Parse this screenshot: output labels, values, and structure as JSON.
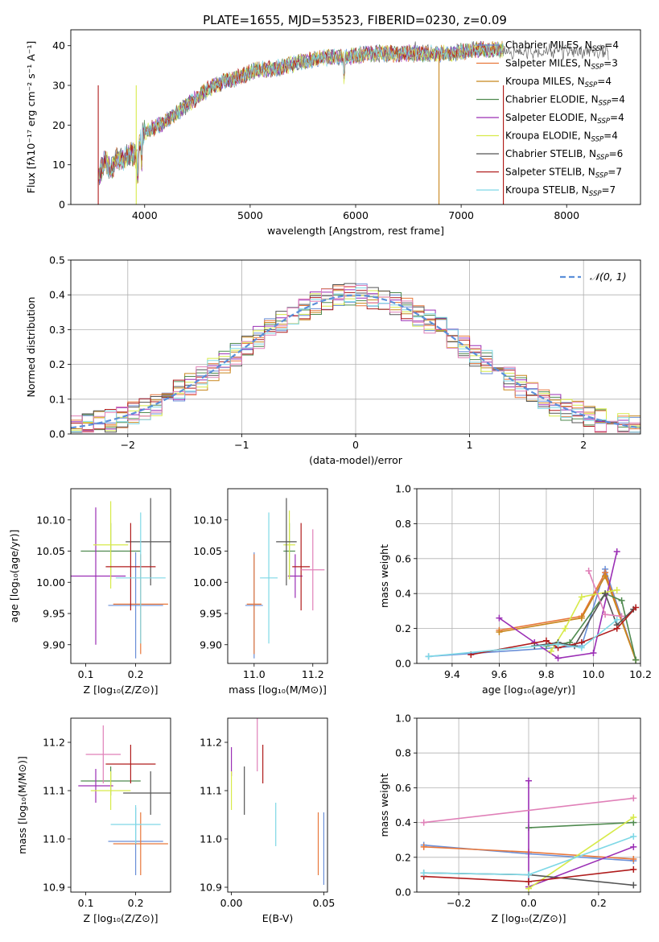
{
  "title": "PLATE=1655, MJD=53523, FIBERID=0230, z=0.09",
  "colors": {
    "chabrier_miles": "#6a8fd8",
    "salpeter_miles": "#e8773a",
    "kroupa_miles": "#c8861c",
    "chabrier_elodie": "#4f8a4f",
    "salpeter_elodie": "#9b2fb5",
    "kroupa_elodie": "#d7ea4a",
    "chabrier_stelib": "#555555",
    "salpeter_stelib": "#b01c1c",
    "kroupa_stelib": "#7fd8e6",
    "pink": "#e080b8",
    "normal": "#5b8fd9"
  },
  "chart_data": [
    {
      "type": "line",
      "title": "PLATE=1655, MJD=53523, FIBERID=0230, z=0.09",
      "xlabel": "wavelength [Angstrom, rest frame]",
      "ylabel": "Flux [fλ10⁻¹⁷ erg cm⁻² s⁻¹ A⁻¹]",
      "xlim": [
        3300,
        8700
      ],
      "ylim": [
        0,
        44
      ],
      "xticks": [
        "4000",
        "5000",
        "6000",
        "7000",
        "8000"
      ],
      "yticks": [
        "0",
        "10",
        "20",
        "30",
        "40"
      ],
      "grid": false,
      "legend_position": "right",
      "spectrum": {
        "x": [
          3560,
          3620,
          3680,
          3740,
          3800,
          3860,
          3920,
          3980,
          4050,
          4150,
          4250,
          4350,
          4450,
          4600,
          4750,
          4900,
          5050,
          5200,
          5350,
          5500,
          5700,
          5900,
          6100,
          6300,
          6500,
          6700,
          6900,
          7100,
          7300,
          7400
        ],
        "y": [
          7,
          11,
          9,
          12,
          11,
          13,
          12,
          18,
          19,
          20,
          22,
          24,
          26,
          29,
          31,
          32,
          34,
          34,
          35,
          36,
          37,
          37,
          38,
          38,
          38,
          38,
          38,
          39,
          39,
          39
        ]
      },
      "series": [
        {
          "name": "Chabrier MILES, N$_{SSP}$=4",
          "label_main": "Chabrier MILES, N",
          "label_sub": "SSP",
          "label_n": "=4"
        },
        {
          "name": "Salpeter MILES, N$_{SSP}$=3",
          "label_main": "Salpeter MILES, N",
          "label_sub": "SSP",
          "label_n": "=3"
        },
        {
          "name": "Kroupa MILES, N$_{SSP}$=4",
          "label_main": "Kroupa MILES, N",
          "label_sub": "SSP",
          "label_n": "=4"
        },
        {
          "name": "Chabrier ELODIE, N$_{SSP}$=4",
          "label_main": "Chabrier ELODIE, N",
          "label_sub": "SSP",
          "label_n": "=4"
        },
        {
          "name": "Salpeter ELODIE, N$_{SSP}$=4",
          "label_main": "Salpeter ELODIE, N",
          "label_sub": "SSP",
          "label_n": "=4"
        },
        {
          "name": "Kroupa ELODIE, N$_{SSP}$=4",
          "label_main": "Kroupa ELODIE, N",
          "label_sub": "SSP",
          "label_n": "=4"
        },
        {
          "name": "Chabrier STELIB, N$_{SSP}$=6",
          "label_main": "Chabrier STELIB, N",
          "label_sub": "SSP",
          "label_n": "=6"
        },
        {
          "name": "Salpeter STELIB, N$_{SSP}$=7",
          "label_main": "Salpeter STELIB, N",
          "label_sub": "SSP",
          "label_n": "=7"
        },
        {
          "name": "Kroupa STELIB, N$_{SSP}$=7",
          "label_main": "Kroupa STELIB, N",
          "label_sub": "SSP",
          "label_n": "=7"
        }
      ]
    },
    {
      "type": "area",
      "xlabel": "(data-model)/error",
      "ylabel": "Normed distribution",
      "xlim": [
        -2.5,
        2.5
      ],
      "ylim": [
        0,
        0.5
      ],
      "xticks": [
        "−2",
        "−1",
        "0",
        "1",
        "2"
      ],
      "yticks": [
        "0.0",
        "0.1",
        "0.2",
        "0.3",
        "0.4",
        "0.5"
      ],
      "grid": true,
      "legend_position": "top-right",
      "legend_label": "𝒩(0, 1)",
      "bin_width": 0.1
    },
    {
      "type": "scatter",
      "xlabel": "Z [log₁₀(Z/Z⊙)]",
      "ylabel": "age  [log₁₀(age/yr)]",
      "xlim": [
        0.07,
        0.27
      ],
      "ylim": [
        9.87,
        10.15
      ],
      "xticks": [
        "0.1",
        "0.2"
      ],
      "yticks": [
        "9.90",
        "9.95",
        "10.00",
        "10.05",
        "10.10"
      ],
      "points": [
        {
          "series": 0,
          "x": 0.2,
          "y": 9.963,
          "xerr": 0.055,
          "yerr": 0.085
        },
        {
          "series": 1,
          "x": 0.21,
          "y": 9.965,
          "xerr": 0.055,
          "yerr": 0.08
        },
        {
          "series": 3,
          "x": 0.15,
          "y": 10.05,
          "xerr": 0.06,
          "yerr": 0.045
        },
        {
          "series": 4,
          "x": 0.12,
          "y": 10.01,
          "xerr": 0.06,
          "yerr": 0.11
        },
        {
          "series": 5,
          "x": 0.15,
          "y": 10.06,
          "xerr": 0.035,
          "yerr": 0.07
        },
        {
          "series": 6,
          "x": 0.23,
          "y": 10.065,
          "xerr": 0.05,
          "yerr": 0.07
        },
        {
          "series": 7,
          "x": 0.19,
          "y": 10.025,
          "xerr": 0.05,
          "yerr": 0.07
        },
        {
          "series": 8,
          "x": 0.21,
          "y": 10.007,
          "xerr": 0.05,
          "yerr": 0.105
        }
      ]
    },
    {
      "type": "scatter",
      "xlabel": "mass [log₁₀(M/M⊙)]",
      "xlim": [
        10.91,
        11.25
      ],
      "ylim": [
        9.87,
        10.15
      ],
      "xticks": [
        "11.0",
        "11.2"
      ],
      "yticks": [
        "9.90",
        "9.95",
        "10.00",
        "10.05",
        "10.10"
      ],
      "points": [
        {
          "series": 0,
          "x": 11.0,
          "y": 9.963,
          "xerr": 0.03,
          "yerr": 0.085
        },
        {
          "series": 1,
          "x": 11.0,
          "y": 9.965,
          "xerr": 0.025,
          "yerr": 0.08
        },
        {
          "series": 3,
          "x": 11.12,
          "y": 10.05,
          "xerr": 0.02,
          "yerr": 0.045
        },
        {
          "series": 4,
          "x": 11.14,
          "y": 10.01,
          "xerr": 0.025,
          "yerr": 0.035
        },
        {
          "series": 5,
          "x": 11.12,
          "y": 10.06,
          "xerr": 0.02,
          "yerr": 0.055
        },
        {
          "series": 6,
          "x": 11.11,
          "y": 10.065,
          "xerr": 0.035,
          "yerr": 0.07
        },
        {
          "series": 7,
          "x": 11.16,
          "y": 10.025,
          "xerr": 0.03,
          "yerr": 0.07
        },
        {
          "series": 8,
          "x": 11.05,
          "y": 10.007,
          "xerr": 0.03,
          "yerr": 0.105
        },
        {
          "series": 9,
          "x": 11.2,
          "y": 10.02,
          "xerr": 0.04,
          "yerr": 0.065
        }
      ]
    },
    {
      "type": "line",
      "xlabel": "age  [log₁₀(age/yr)]",
      "ylabel": "mass weight",
      "xlim": [
        9.25,
        10.2
      ],
      "ylim": [
        0,
        1
      ],
      "xticks": [
        "9.4",
        "9.6",
        "9.8",
        "10.0",
        "10.2"
      ],
      "yticks": [
        "0.0",
        "0.2",
        "0.4",
        "0.6",
        "0.8",
        "1.0"
      ],
      "grid": true,
      "series_points": [
        {
          "series": 0,
          "x": [
            9.3,
            9.95,
            10.05,
            10.18
          ],
          "y": [
            0.04,
            0.1,
            0.54,
            0.02
          ]
        },
        {
          "series": 1,
          "x": [
            9.6,
            9.95,
            10.05,
            10.18
          ],
          "y": [
            0.19,
            0.27,
            0.52,
            0.02
          ]
        },
        {
          "series": 2,
          "x": [
            9.6,
            9.95,
            10.05,
            10.18
          ],
          "y": [
            0.18,
            0.26,
            0.5,
            0.02
          ]
        },
        {
          "series": 3,
          "x": [
            9.8,
            9.9,
            10.05,
            10.12,
            10.18
          ],
          "y": [
            0.1,
            0.12,
            0.4,
            0.36,
            0.02
          ]
        },
        {
          "series": 4,
          "x": [
            9.6,
            9.75,
            9.85,
            10.0,
            10.1
          ],
          "y": [
            0.26,
            0.12,
            0.03,
            0.06,
            0.64
          ]
        },
        {
          "series": 5,
          "x": [
            9.82,
            9.88,
            9.95,
            10.1
          ],
          "y": [
            0.07,
            0.2,
            0.38,
            0.42
          ]
        },
        {
          "series": 6,
          "x": [
            9.75,
            9.85,
            9.92,
            10.05,
            10.1,
            10.17
          ],
          "y": [
            0.1,
            0.12,
            0.1,
            0.4,
            0.22,
            0.31
          ]
        },
        {
          "series": 7,
          "x": [
            9.48,
            9.8,
            9.85,
            9.95,
            10.1,
            10.18
          ],
          "y": [
            0.05,
            0.13,
            0.09,
            0.12,
            0.2,
            0.32
          ]
        },
        {
          "series": 8,
          "x": [
            9.3,
            9.85,
            9.95,
            10.1
          ],
          "y": [
            0.04,
            0.11,
            0.09,
            0.25
          ]
        },
        {
          "series": 9,
          "x": [
            9.98,
            10.05,
            10.12
          ],
          "y": [
            0.53,
            0.28,
            0.27
          ]
        }
      ]
    },
    {
      "type": "scatter",
      "xlabel": "Z [log₁₀(Z/Z⊙)]",
      "ylabel": "mass [log₁₀(M/M⊙)]",
      "xlim": [
        0.07,
        0.27
      ],
      "ylim": [
        10.89,
        11.25
      ],
      "xticks": [
        "0.1",
        "0.2"
      ],
      "yticks": [
        "10.9",
        "11.0",
        "11.1",
        "11.2"
      ],
      "points": [
        {
          "series": 0,
          "x": 0.2,
          "y": 10.995,
          "xerr": 0.055,
          "yerr": 0.07
        },
        {
          "series": 1,
          "x": 0.21,
          "y": 10.99,
          "xerr": 0.055,
          "yerr": 0.065
        },
        {
          "series": 3,
          "x": 0.15,
          "y": 11.12,
          "xerr": 0.06,
          "yerr": 0.03
        },
        {
          "series": 4,
          "x": 0.12,
          "y": 11.11,
          "xerr": 0.035,
          "yerr": 0.035
        },
        {
          "series": 5,
          "x": 0.15,
          "y": 11.1,
          "xerr": 0.04,
          "yerr": 0.04
        },
        {
          "series": 6,
          "x": 0.23,
          "y": 11.095,
          "xerr": 0.055,
          "yerr": 0.045
        },
        {
          "series": 7,
          "x": 0.19,
          "y": 11.155,
          "xerr": 0.05,
          "yerr": 0.04
        },
        {
          "series": 8,
          "x": 0.2,
          "y": 11.03,
          "xerr": 0.05,
          "yerr": 0.04
        },
        {
          "series": 9,
          "x": 0.135,
          "y": 11.175,
          "xerr": 0.035,
          "yerr": 0.06
        }
      ]
    },
    {
      "type": "scatter",
      "xlabel": "E(B-V)",
      "xlim": [
        -0.002,
        0.052
      ],
      "ylim": [
        10.89,
        11.25
      ],
      "xticks": [
        "0.00",
        "0.05"
      ],
      "yticks": [
        "10.9",
        "11.0",
        "11.1",
        "11.2"
      ],
      "points": [
        {
          "series": 0,
          "x": 0.05,
          "y": 10.98,
          "yerr": 0.075
        },
        {
          "series": 1,
          "x": 0.047,
          "y": 10.99,
          "yerr": 0.065
        },
        {
          "series": 4,
          "x": 0.0,
          "y": 11.16,
          "yerr": 0.03
        },
        {
          "series": 5,
          "x": 0.0,
          "y": 11.1,
          "yerr": 0.04
        },
        {
          "series": 6,
          "x": 0.007,
          "y": 11.1,
          "yerr": 0.05
        },
        {
          "series": 7,
          "x": 0.017,
          "y": 11.155,
          "yerr": 0.04
        },
        {
          "series": 8,
          "x": 0.024,
          "y": 11.03,
          "yerr": 0.045
        },
        {
          "series": 9,
          "x": 0.014,
          "y": 11.2,
          "yerr": 0.06
        }
      ]
    },
    {
      "type": "line",
      "xlabel": "Z [log₁₀(Z/Z⊙)]",
      "ylabel": "mass weight",
      "xlim": [
        -0.32,
        0.32
      ],
      "ylim": [
        0,
        1
      ],
      "xticks": [
        "−0.2",
        "0.0",
        "0.2"
      ],
      "yticks": [
        "0.0",
        "0.2",
        "0.4",
        "0.6",
        "0.8",
        "1.0"
      ],
      "grid": true,
      "series_points": [
        {
          "series": 0,
          "x": [
            -0.3,
            0.0,
            0.3
          ],
          "y": [
            0.27,
            0.22,
            0.18
          ]
        },
        {
          "series": 1,
          "x": [
            -0.3,
            0.0,
            0.3
          ],
          "y": [
            0.26,
            0.23,
            0.19
          ]
        },
        {
          "series": 3,
          "x": [
            0.0,
            0.3
          ],
          "y": [
            0.37,
            0.4
          ]
        },
        {
          "series": 4,
          "x": [
            0.0,
            0.0,
            0.3
          ],
          "y": [
            0.64,
            0.03,
            0.26
          ]
        },
        {
          "series": 5,
          "x": [
            0.0,
            0.3
          ],
          "y": [
            0.02,
            0.43
          ]
        },
        {
          "series": 6,
          "x": [
            -0.3,
            0.0,
            0.3
          ],
          "y": [
            0.11,
            0.1,
            0.04
          ]
        },
        {
          "series": 7,
          "x": [
            -0.3,
            0.0,
            0.3
          ],
          "y": [
            0.09,
            0.06,
            0.13
          ]
        },
        {
          "series": 8,
          "x": [
            -0.3,
            0.0,
            0.3
          ],
          "y": [
            0.11,
            0.1,
            0.32
          ]
        },
        {
          "series": 9,
          "x": [
            -0.3,
            0.3
          ],
          "y": [
            0.4,
            0.54
          ]
        }
      ]
    }
  ]
}
